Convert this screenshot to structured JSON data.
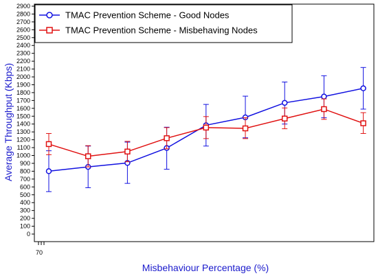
{
  "chart_data": {
    "type": "line",
    "title": "",
    "xlabel": "Misbehaviour Percentage (%)",
    "ylabel": "Average Throughput (Kbps)",
    "x_tick_label": "70",
    "ylim": [
      0,
      2900
    ],
    "y_ticks": [
      "0",
      "100",
      "200",
      "300",
      "400",
      "500",
      "600",
      "700",
      "800",
      "900",
      "1000",
      "1100",
      "1200",
      "1300",
      "1400",
      "1500",
      "1600",
      "1700",
      "1800",
      "1900",
      "2000",
      "2100",
      "2200",
      "2300",
      "2400",
      "2500",
      "2600",
      "2700",
      "2800",
      "2900"
    ],
    "grid": false,
    "legend_position": "top-left",
    "series": [
      {
        "name": "TMAC Prevention Scheme - Good Nodes",
        "color": "#1010e0",
        "marker": "circle",
        "values": [
          800,
          855,
          905,
          1095,
          1385,
          1485,
          1670,
          1750,
          1855
        ],
        "err_low": [
          540,
          590,
          645,
          825,
          1120,
          1225,
          1400,
          1480,
          1590
        ],
        "err_high": [
          1060,
          1120,
          1170,
          1360,
          1650,
          1755,
          1935,
          2015,
          2120
        ]
      },
      {
        "name": "TMAC Prevention Scheme - Misbehaving Nodes",
        "color": "#e01010",
        "marker": "square",
        "values": [
          1145,
          990,
          1050,
          1220,
          1355,
          1345,
          1470,
          1590,
          1410
        ],
        "err_low": [
          1010,
          855,
          920,
          1085,
          1215,
          1215,
          1340,
          1460,
          1280
        ],
        "err_high": [
          1280,
          1125,
          1180,
          1355,
          1495,
          1480,
          1605,
          1720,
          1545
        ]
      }
    ]
  }
}
